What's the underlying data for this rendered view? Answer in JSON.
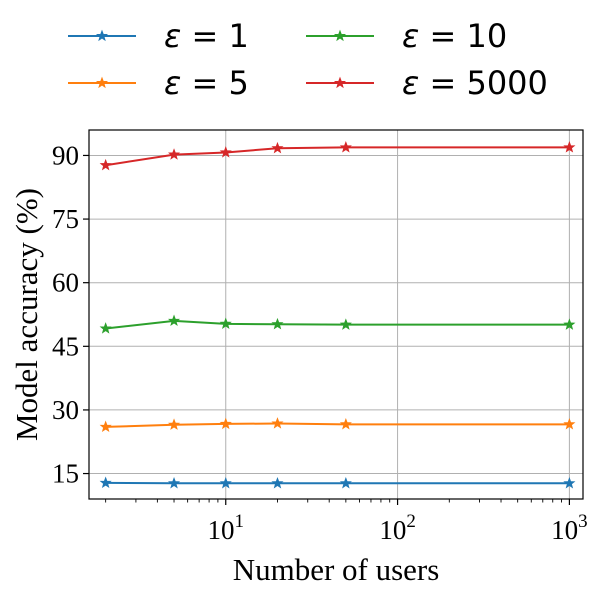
{
  "chart_data": {
    "type": "line",
    "xlabel": "Number of users",
    "ylabel": "Model accuracy (%)",
    "x_scale": "log",
    "x_base": 10,
    "xlim": [
      1.6,
      1200
    ],
    "ylim": [
      9,
      96
    ],
    "x_ticks": [
      {
        "value": 10,
        "exponent": "1"
      },
      {
        "value": 100,
        "exponent": "2"
      },
      {
        "value": 1000,
        "exponent": "3"
      }
    ],
    "y_ticks": [
      15,
      30,
      45,
      60,
      75,
      90
    ],
    "grid": true,
    "legend_position": "top, above plot, 2 columns",
    "marker": "star",
    "x": [
      2,
      5,
      10,
      20,
      50,
      1000
    ],
    "series": [
      {
        "name": "ε = 1",
        "epsilon": "1",
        "color": "#1f77b4",
        "values": [
          12.8,
          12.7,
          12.7,
          12.7,
          12.7,
          12.7
        ]
      },
      {
        "name": "ε = 5",
        "epsilon": "5",
        "color": "#ff7f0e",
        "values": [
          26.0,
          26.5,
          26.7,
          26.8,
          26.6,
          26.6
        ]
      },
      {
        "name": "ε = 10",
        "epsilon": "10",
        "color": "#2ca02c",
        "values": [
          49.2,
          51.0,
          50.3,
          50.2,
          50.1,
          50.1
        ]
      },
      {
        "name": "ε = 5000",
        "epsilon": "5000",
        "color": "#d62728",
        "values": [
          87.7,
          90.2,
          90.7,
          91.7,
          91.9,
          91.9
        ]
      }
    ]
  }
}
